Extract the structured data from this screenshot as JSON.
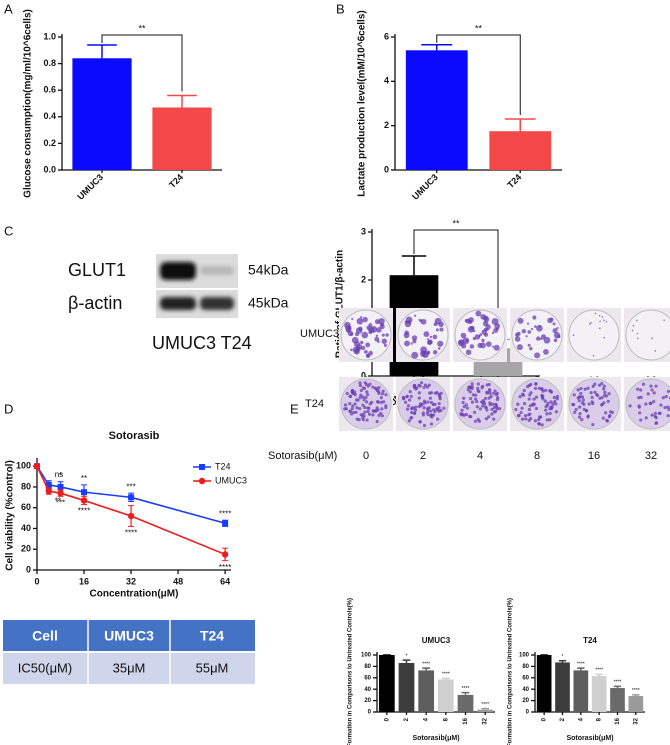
{
  "panels": [
    "A",
    "B",
    "C",
    "D",
    "E"
  ],
  "chart_data": [
    {
      "type": "bar",
      "y_label": "Glucose consumption(mg/ml/10^6cells)",
      "categories": [
        "UMUC3",
        "T24"
      ],
      "values": [
        0.84,
        0.47
      ],
      "errors": [
        0.1,
        0.09
      ],
      "colors": [
        "#0a0aff",
        "#f24848"
      ],
      "significance": "**",
      "ylim": [
        0,
        1.0
      ],
      "yticks": [
        {
          "value": 0,
          "label": "0.0"
        },
        0.2,
        0.4,
        0.6,
        0.8,
        {
          "value": 1.0,
          "label": "1.0"
        }
      ]
    },
    {
      "type": "bar",
      "y_label": "Lactate production level(mM/10^6cells)",
      "categories": [
        "UMUC3",
        "T24"
      ],
      "values": [
        5.4,
        1.75
      ],
      "errors": [
        0.25,
        0.55
      ],
      "colors": [
        "#0a0aff",
        "#f24848"
      ],
      "significance": "**",
      "ylim": [
        0,
        6
      ],
      "yticks": [
        0,
        2,
        4,
        6
      ]
    },
    {
      "type": "bar",
      "y_label": "Ratio of GLUT1/β-actin",
      "categories": [
        "UMUC3",
        "T24"
      ],
      "values": [
        2.1,
        0.58
      ],
      "errors": [
        0.4,
        0.18
      ],
      "colors": [
        "#000000",
        "#a6a6a6"
      ],
      "significance": "**",
      "ylim": [
        0,
        3
      ],
      "yticks": [
        0,
        1,
        2,
        3
      ]
    },
    {
      "type": "line",
      "title": "Sotorasib",
      "x_label": "Concentration(μM)",
      "y_label": "Cell viability (%control)",
      "legend": "top-right",
      "x": [
        0,
        4,
        8,
        16,
        32,
        64
      ],
      "xlim": [
        0,
        66
      ],
      "xticks": [
        0,
        16,
        32,
        48,
        64
      ],
      "ylim": [
        0,
        105
      ],
      "yticks": [
        0,
        20,
        40,
        60,
        80,
        100
      ],
      "series": [
        {
          "name": "T24",
          "color": "#1a3cff",
          "marker": "square",
          "values": [
            100,
            82,
            80,
            75,
            70,
            45
          ],
          "errors": [
            2,
            4,
            5,
            7,
            4,
            3
          ],
          "annotations": [
            null,
            "ns",
            "*",
            "**",
            "***",
            "****"
          ]
        },
        {
          "name": "UMUC3",
          "color": "#ee1c1c",
          "marker": "circle",
          "values": [
            100,
            76,
            74,
            67,
            52,
            15
          ],
          "errors": [
            2,
            3,
            3,
            4,
            10,
            6
          ],
          "annotations": [
            null,
            "**",
            "***",
            "****",
            "****",
            "****"
          ]
        }
      ]
    },
    {
      "type": "bar",
      "title": "UMUC3",
      "x_label": "Sotorasib(μM)",
      "y_label": "Colony Formation in Comparisons to Untreated Controls(%)",
      "categories": [
        "0",
        "2",
        "4",
        "8",
        "16",
        "32"
      ],
      "values": [
        100,
        86,
        73,
        57,
        30,
        4
      ],
      "errors": [
        0,
        5,
        4,
        2,
        4,
        2
      ],
      "annotations": [
        null,
        "*",
        "****",
        "****",
        "****",
        "****"
      ],
      "colors": [
        "#000000",
        "#3c3c3c",
        "#5e5e5e",
        "#cfcfcf",
        "#6a6a6a",
        "#9a9a9a"
      ],
      "ylim": [
        0,
        100
      ],
      "yticks": [
        0,
        20,
        40,
        60,
        80,
        100
      ]
    },
    {
      "type": "bar",
      "title": "T24",
      "x_label": "Sotorasib(μM)",
      "y_label": "Colony Formation in Comparisons to Untreated Controls(%)",
      "categories": [
        "0",
        "2",
        "4",
        "8",
        "16",
        "32"
      ],
      "values": [
        100,
        87,
        73,
        63,
        42,
        28
      ],
      "errors": [
        0,
        3,
        4,
        3,
        3,
        2
      ],
      "annotations": [
        null,
        "*",
        "****",
        "****",
        "****",
        "****"
      ],
      "colors": [
        "#000000",
        "#3c3c3c",
        "#5e5e5e",
        "#cfcfcf",
        "#6a6a6a",
        "#9a9a9a"
      ],
      "ylim": [
        0,
        100
      ],
      "yticks": [
        0,
        20,
        40,
        60,
        80,
        100
      ]
    }
  ],
  "blot": {
    "rows": [
      {
        "label": "GLUT1",
        "size": "54kDa"
      },
      {
        "label": "β-actin",
        "size": "45kDa"
      }
    ],
    "lanes": "UMUC3 T24"
  },
  "table": {
    "header": [
      "Cell",
      "UMUC3",
      "T24"
    ],
    "rows": [
      [
        "IC50(μM)",
        "35μM",
        "55μM"
      ]
    ]
  },
  "colony": {
    "rows": [
      "UMUC3",
      "T24"
    ],
    "doses": [
      "0",
      "2",
      "4",
      "8",
      "16",
      "32"
    ],
    "x_label": "Sotorasib(μM)"
  }
}
